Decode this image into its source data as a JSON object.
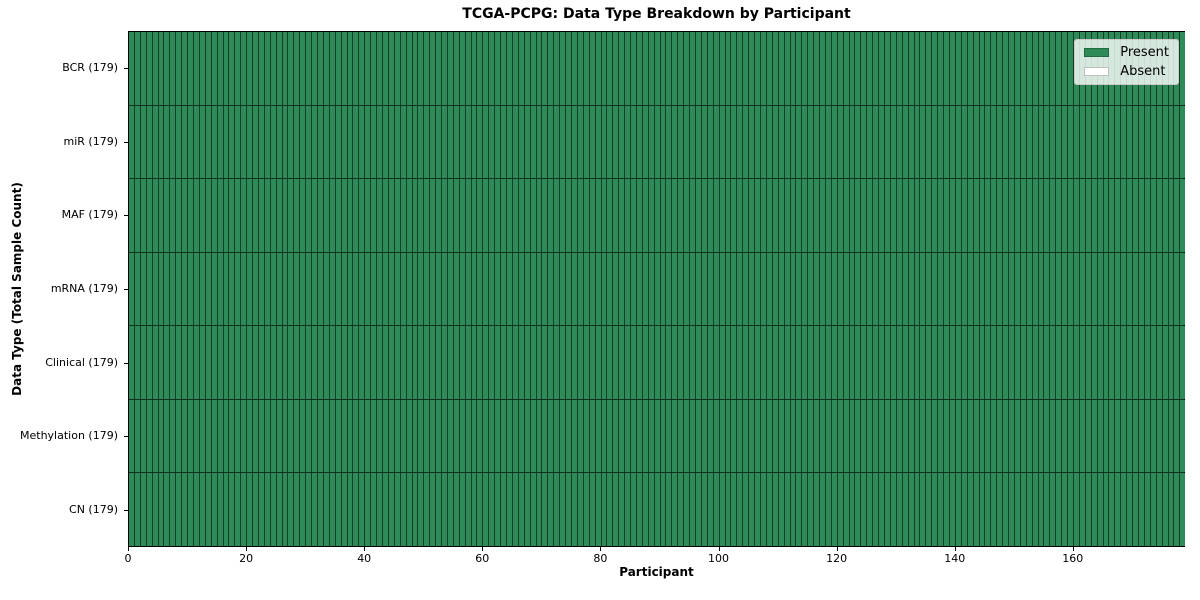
{
  "figure": {
    "title": "TCGA-PCPG: Data Type Breakdown by Participant",
    "xlabel": "Participant",
    "ylabel": "Data Type (Total Sample Count)"
  },
  "legend": {
    "position": "upper right",
    "items": [
      {
        "label": "Present",
        "color": "#2e8b57"
      },
      {
        "label": "Absent",
        "color": "#ffffff"
      }
    ]
  },
  "chart_data": {
    "type": "heatmap",
    "title": "TCGA-PCPG: Data Type Breakdown by Participant",
    "xlabel": "Participant",
    "ylabel": "Data Type (Total Sample Count)",
    "n_participants": 179,
    "xlim": [
      0,
      179
    ],
    "x_ticks": [
      0,
      20,
      40,
      60,
      80,
      100,
      120,
      140,
      160
    ],
    "rows": [
      {
        "label": "BCR (179)",
        "data_type": "BCR",
        "total_sample_count": 179,
        "present_count": 179,
        "absent_count": 0
      },
      {
        "label": "miR (179)",
        "data_type": "miR",
        "total_sample_count": 179,
        "present_count": 179,
        "absent_count": 0
      },
      {
        "label": "MAF (179)",
        "data_type": "MAF",
        "total_sample_count": 179,
        "present_count": 179,
        "absent_count": 0
      },
      {
        "label": "mRNA (179)",
        "data_type": "mRNA",
        "total_sample_count": 179,
        "present_count": 179,
        "absent_count": 0
      },
      {
        "label": "Clinical (179)",
        "data_type": "Clinical",
        "total_sample_count": 179,
        "present_count": 179,
        "absent_count": 0
      },
      {
        "label": "Methylation (179)",
        "data_type": "Methylation",
        "total_sample_count": 179,
        "present_count": 179,
        "absent_count": 0
      },
      {
        "label": "CN (179)",
        "data_type": "CN",
        "total_sample_count": 179,
        "present_count": 179,
        "absent_count": 0
      }
    ],
    "colors": {
      "present": "#2e8b57",
      "absent": "#ffffff",
      "cell_edge": "rgba(0,0,0,0.55)",
      "row_separator": "rgba(0,0,0,0.65)",
      "spine": "#000000"
    },
    "legend_position": "upper right",
    "grid": "cell-borders"
  }
}
